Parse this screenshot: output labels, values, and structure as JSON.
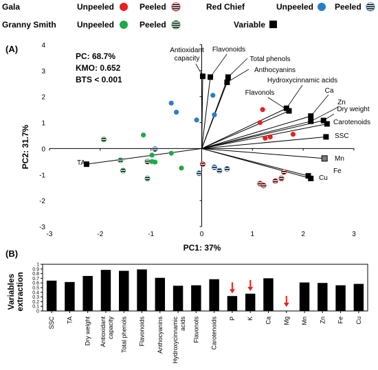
{
  "legend": {
    "cultivars": [
      {
        "name": "Gala",
        "unpeeled_label": "Unpeeled",
        "peeled_label": "Peeled",
        "color": "#e8201f"
      },
      {
        "name": "Red Chief",
        "unpeeled_label": "Unpeeled",
        "peeled_label": "Peeled",
        "color": "#2a7ec6"
      },
      {
        "name": "Granny Smith",
        "unpeeled_label": "Unpeeled",
        "peeled_label": "Peeled",
        "color": "#1fa84a"
      }
    ],
    "variable_label": "Variable"
  },
  "chart_data": [
    {
      "type": "scatter",
      "panel_label": "(A)",
      "xlabel": "PC1: 37%",
      "ylabel": "PC2: 31.7%",
      "xlim": [
        -3,
        3
      ],
      "ylim": [
        -3,
        4
      ],
      "xticks": [
        "-3",
        "-2",
        "-1",
        "0",
        "1",
        "2",
        "3"
      ],
      "yticks": [
        "4",
        "3",
        "2",
        "1",
        "0",
        "-1",
        "-2",
        "-3"
      ],
      "stats": [
        "PC: 68.7%",
        "KMO: 0.652",
        "BTS < 0.001"
      ],
      "variables": [
        {
          "name": "TA",
          "x": -2.27,
          "y": -0.6
        },
        {
          "name": "Antioxidant capacity",
          "x": 0.02,
          "y": 2.78
        },
        {
          "name": "Flavonoids",
          "x": 0.17,
          "y": 2.75
        },
        {
          "name": "Total phenols",
          "x": 0.52,
          "y": 2.75
        },
        {
          "name": "Anthocyanins",
          "x": 0.5,
          "y": 2.55
        },
        {
          "name": "Flavonols",
          "x": 1.72,
          "y": 1.45
        },
        {
          "name": "Hydroxycinnamic acids",
          "x": 1.67,
          "y": 1.55
        },
        {
          "name": "Ca",
          "x": 2.15,
          "y": 1.25
        },
        {
          "name": "Zn",
          "x": 2.15,
          "y": 1.05
        },
        {
          "name": "Dry weight",
          "x": 2.4,
          "y": 1.08
        },
        {
          "name": "Carotenoids",
          "x": 2.47,
          "y": 0.95
        },
        {
          "name": "SSC",
          "x": 2.45,
          "y": 0.45
        },
        {
          "name": "Mn",
          "x": 2.42,
          "y": -0.38
        },
        {
          "name": "Fe",
          "x": 2.1,
          "y": -1.05
        },
        {
          "name": "Cu",
          "x": 2.15,
          "y": -1.15
        }
      ],
      "series": [
        {
          "name": "Gala Unpeeled",
          "color": "#e8201f",
          "filled": true,
          "points": [
            [
              1.15,
              1.0
            ],
            [
              1.2,
              1.5
            ],
            [
              1.25,
              0.4
            ],
            [
              1.35,
              0.45
            ],
            [
              1.8,
              0.55
            ]
          ]
        },
        {
          "name": "Gala Peeled",
          "color": "#e8201f",
          "filled": false,
          "points": [
            [
              0.02,
              -0.6
            ],
            [
              1.15,
              -1.35
            ],
            [
              1.22,
              -1.42
            ],
            [
              1.45,
              -1.25
            ],
            [
              1.57,
              -1.15
            ],
            [
              1.62,
              -0.9
            ]
          ]
        },
        {
          "name": "Red Chief Unpeeled",
          "color": "#2a7ec6",
          "filled": true,
          "points": [
            [
              -0.6,
              1.75
            ],
            [
              -0.5,
              1.4
            ],
            [
              -0.1,
              1.1
            ],
            [
              0.22,
              2.05
            ],
            [
              0.25,
              1.3
            ]
          ]
        },
        {
          "name": "Red Chief Peeled",
          "color": "#2a7ec6",
          "filled": false,
          "points": [
            [
              -0.92,
              -0.02
            ],
            [
              -0.05,
              -0.95
            ],
            [
              0.25,
              -0.72
            ],
            [
              0.35,
              -0.85
            ],
            [
              0.5,
              -0.78
            ]
          ]
        },
        {
          "name": "Granny Smith Unpeeled",
          "color": "#1fa84a",
          "filled": true,
          "points": [
            [
              -1.15,
              0.52
            ],
            [
              -0.98,
              -0.25
            ],
            [
              -0.98,
              -0.5
            ],
            [
              -0.92,
              -0.52
            ],
            [
              -0.6,
              -0.18
            ],
            [
              -0.4,
              -0.75
            ]
          ]
        },
        {
          "name": "Granny Smith Peeled",
          "color": "#1fa84a",
          "filled": false,
          "points": [
            [
              -1.93,
              0.35
            ],
            [
              -1.6,
              -0.45
            ],
            [
              -1.55,
              -0.85
            ],
            [
              -1.07,
              -0.5
            ],
            [
              -1.07,
              -1.15
            ]
          ]
        }
      ]
    },
    {
      "type": "bar",
      "panel_label": "(B)",
      "ylabel": "Variables extraction",
      "ylim": [
        0,
        1
      ],
      "yticks": [
        "0",
        "0.1",
        "0.2",
        "0.3",
        "0.4",
        "0.5",
        "0.6",
        "0.7",
        "0.8",
        "0.9",
        "1"
      ],
      "categories": [
        "SSC",
        "TA",
        "Dry weight",
        "Antioxidant capacity",
        "Total phenols",
        "Flavonoids",
        "Anthocyanins",
        "Hydroxycinnamic acids",
        "Flavonols",
        "Carotenoids",
        "P",
        "K",
        "Ca",
        "Mg",
        "Mn",
        "Zn",
        "Fe",
        "Cu"
      ],
      "values": [
        0.65,
        0.62,
        0.75,
        0.88,
        0.86,
        0.89,
        0.71,
        0.54,
        0.55,
        0.68,
        0.32,
        0.37,
        0.7,
        0.0,
        0.61,
        0.6,
        0.55,
        0.58
      ],
      "arrow_categories": [
        "P",
        "K",
        "Mg"
      ],
      "arrow_color": "#e8201f"
    }
  ]
}
